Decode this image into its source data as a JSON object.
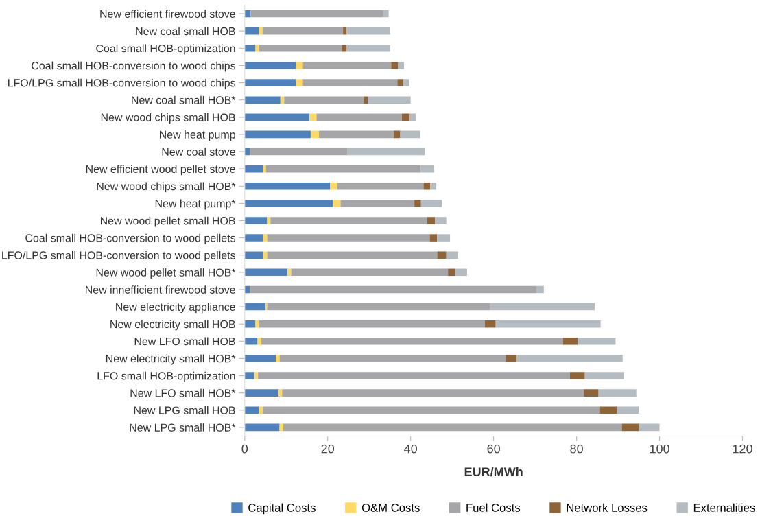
{
  "chart_data": {
    "type": "bar",
    "orientation": "horizontal",
    "stacked": true,
    "categories": [
      "New efficient firewood stove",
      "New coal small HOB",
      "Coal small HOB-optimization",
      "Coal small HOB-conversion to wood chips",
      "LFO/LPG small HOB-conversion to wood chips",
      "New coal small HOB*",
      "New wood chips small HOB",
      "New heat pump",
      "New coal stove",
      "New efficient wood pellet stove",
      "New wood chips small HOB*",
      "New heat pump*",
      "New wood pellet small HOB",
      "Coal small HOB-conversion to wood pellets",
      "LFO/LPG small HOB-conversion to wood pellets",
      "New wood pellet small HOB*",
      "New innefficient firewood stove",
      "New electricity appliance",
      "New electricity small HOB",
      "New LFO small HOB",
      "New electricity small HOB*",
      "LFO small HOB-optimization",
      "New LFO small HOB*",
      "New LPG small HOB",
      "New LPG small HOB*"
    ],
    "series": [
      {
        "name": "Capital Costs",
        "color": "#4f81bd",
        "values": [
          1.4,
          3.4,
          2.6,
          12.3,
          12.3,
          8.6,
          15.6,
          15.9,
          1.2,
          4.5,
          20.6,
          21.2,
          5.4,
          4.5,
          4.5,
          10.3,
          1.2,
          5.0,
          2.6,
          3.1,
          7.5,
          2.3,
          8.2,
          3.4,
          8.4
        ]
      },
      {
        "name": "O&M Costs",
        "color": "#ffd966",
        "values": [
          0,
          0.9,
          0.9,
          1.7,
          1.7,
          0.9,
          1.7,
          2.0,
          0,
          0.6,
          1.7,
          1.9,
          0.8,
          0.9,
          0.9,
          0.9,
          0,
          0.4,
          0.9,
          0.9,
          0.9,
          0.9,
          0.8,
          0.9,
          0.9
        ]
      },
      {
        "name": "Fuel Costs",
        "color": "#a6a6a9",
        "values": [
          32.0,
          19.4,
          19.9,
          21.3,
          22.8,
          19.2,
          20.6,
          18.0,
          23.6,
          37.3,
          20.8,
          17.8,
          37.8,
          39.2,
          41.0,
          37.8,
          69.1,
          53.8,
          54.4,
          72.7,
          54.5,
          75.2,
          72.7,
          81.3,
          81.6
        ]
      },
      {
        "name": "Network Losses",
        "color": "#8f6439",
        "values": [
          0,
          0.8,
          1.1,
          1.7,
          1.5,
          1.0,
          1.9,
          1.6,
          0,
          0,
          1.6,
          1.6,
          1.9,
          1.8,
          2.2,
          1.8,
          0,
          0,
          2.6,
          3.6,
          2.6,
          3.6,
          3.6,
          4.1,
          4.1
        ]
      },
      {
        "name": "Externalities",
        "color": "#b4bcc2",
        "values": [
          1.3,
          10.6,
          10.6,
          1.4,
          1.4,
          10.3,
          1.4,
          4.8,
          18.6,
          3.2,
          1.5,
          5.0,
          2.7,
          3.1,
          2.8,
          2.8,
          1.8,
          25.2,
          25.3,
          9.1,
          25.6,
          9.4,
          9.1,
          5.3,
          5.0
        ]
      }
    ],
    "xlabel": "EUR/MWh",
    "xlim": [
      0,
      120
    ],
    "xticks": [
      0,
      20,
      40,
      60,
      80,
      100,
      120
    ],
    "grid": false,
    "legend": "bottom"
  }
}
